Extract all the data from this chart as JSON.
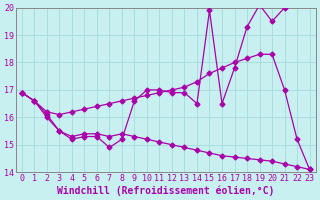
{
  "xlabel": "Windchill (Refroidissement éolien,°C)",
  "bg_color": "#c8f0f0",
  "line_color": "#aa00aa",
  "grid_color": "#aadddd",
  "xlim": [
    0,
    23
  ],
  "ylim": [
    14,
    20
  ],
  "yticks": [
    14,
    15,
    16,
    17,
    18,
    19,
    20
  ],
  "xticks": [
    0,
    1,
    2,
    3,
    4,
    5,
    6,
    7,
    8,
    9,
    10,
    11,
    12,
    13,
    14,
    15,
    16,
    17,
    18,
    19,
    20,
    21,
    22,
    23
  ],
  "line1_x": [
    0,
    1,
    2,
    3,
    4,
    5,
    6,
    7,
    8,
    9,
    10,
    11,
    12,
    13,
    14,
    15,
    16,
    17,
    18,
    19,
    20,
    21
  ],
  "line1_y": [
    16.9,
    16.6,
    16.1,
    15.5,
    15.2,
    15.3,
    15.3,
    14.9,
    15.2,
    16.6,
    17.0,
    17.0,
    16.9,
    16.9,
    16.5,
    19.9,
    16.5,
    17.8,
    19.3,
    20.1,
    19.5,
    20.0
  ],
  "line2_x": [
    0,
    1,
    2,
    3,
    4,
    5,
    6,
    7,
    8,
    9,
    10,
    11,
    12,
    13,
    14,
    15,
    16,
    17,
    18,
    19,
    20,
    21,
    22,
    23
  ],
  "line2_y": [
    16.9,
    16.6,
    16.2,
    16.1,
    16.2,
    16.3,
    16.4,
    16.5,
    16.6,
    16.7,
    16.8,
    16.9,
    17.0,
    17.1,
    17.3,
    17.6,
    17.8,
    18.0,
    18.15,
    18.3,
    18.3,
    17.0,
    15.2,
    14.1
  ],
  "line3_x": [
    0,
    1,
    2,
    3,
    4,
    5,
    6,
    7,
    8,
    9,
    10,
    11,
    12,
    13,
    14,
    15,
    16,
    17,
    18,
    19,
    20,
    21,
    22,
    23
  ],
  "line3_y": [
    16.9,
    16.6,
    16.0,
    15.5,
    15.3,
    15.4,
    15.4,
    15.3,
    15.4,
    15.3,
    15.2,
    15.1,
    15.0,
    14.9,
    14.8,
    14.7,
    14.6,
    14.55,
    14.5,
    14.45,
    14.4,
    14.3,
    14.2,
    14.1
  ],
  "marker": "D",
  "markersize": 2.5,
  "linewidth": 0.9,
  "xlabel_fontsize": 7,
  "tick_fontsize": 6
}
